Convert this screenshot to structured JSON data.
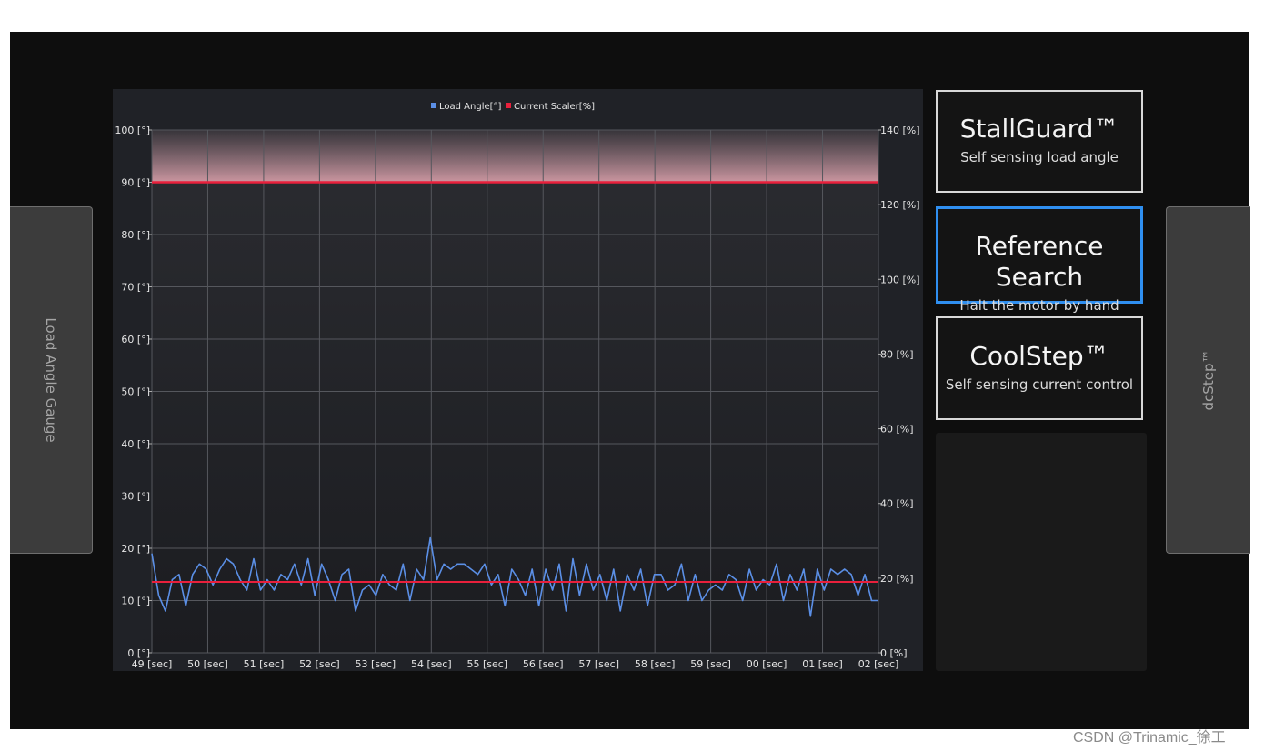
{
  "side_left": {
    "label": "Load Angle Gauge"
  },
  "side_right": {
    "label": "dcStep™"
  },
  "cards": [
    {
      "title": "StallGuard™",
      "subtitle": "Self sensing load angle"
    },
    {
      "title": "Reference Search",
      "subtitle": "Halt the motor by hand"
    },
    {
      "title": "CoolStep™",
      "subtitle": "Self sensing current control"
    }
  ],
  "watermark": "CSDN @Trinamic_徐工",
  "colors": {
    "load_angle": "#5b8fe6",
    "current_scaler": "#e8203c",
    "selected_border": "#2f8ff0",
    "plot_background": "#25262a"
  },
  "chart_data": {
    "type": "line",
    "legend": {
      "placement": "top-center",
      "entries": [
        "Load Angle[°]",
        "Current Scaler[%]"
      ]
    },
    "x_ticks": [
      "49 [sec]",
      "50 [sec]",
      "51 [sec]",
      "52 [sec]",
      "53 [sec]",
      "54 [sec]",
      "55 [sec]",
      "56 [sec]",
      "57 [sec]",
      "58 [sec]",
      "59 [sec]",
      "00 [sec]",
      "01 [sec]",
      "02 [sec]"
    ],
    "y_left": {
      "ticks": [
        "0 [°]",
        "10 [°]",
        "20 [°]",
        "30 [°]",
        "40 [°]",
        "50 [°]",
        "60 [°]",
        "70 [°]",
        "80 [°]",
        "90 [°]",
        "100 [°]"
      ],
      "range": [
        0,
        100
      ]
    },
    "y_right": {
      "ticks": [
        "0 [%]",
        "20 [%]",
        "40 [%]",
        "60 [%]",
        "80 [%]",
        "100 [%]",
        "120 [%]",
        "140 [%]"
      ],
      "range": [
        0,
        140
      ]
    },
    "grid": true,
    "threshold": {
      "axis": "left",
      "value": 90
    },
    "series": [
      {
        "name": "Load Angle[°]",
        "axis": "left",
        "x_range": [
          0,
          13
        ],
        "values": [
          19,
          11,
          8,
          14,
          15,
          9,
          15,
          17,
          16,
          13,
          16,
          18,
          17,
          14,
          12,
          18,
          12,
          14,
          12,
          15,
          14,
          17,
          13,
          18,
          11,
          17,
          14,
          10,
          15,
          16,
          8,
          12,
          13,
          11,
          15,
          13,
          12,
          17,
          10,
          16,
          14,
          22,
          14,
          17,
          16,
          17,
          17,
          16,
          15,
          17,
          13,
          15,
          9,
          16,
          14,
          11,
          16,
          9,
          16,
          12,
          17,
          8,
          18,
          11,
          17,
          12,
          15,
          10,
          16,
          8,
          15,
          12,
          16,
          9,
          15,
          15,
          12,
          13,
          17,
          10,
          15,
          10,
          12,
          13,
          12,
          15,
          14,
          10,
          16,
          12,
          14,
          13,
          17,
          10,
          15,
          12,
          16,
          7,
          16,
          12,
          16,
          15,
          16,
          15,
          11,
          15,
          10,
          10
        ],
        "style": "solid"
      },
      {
        "name": "Current Scaler[%]",
        "axis": "right",
        "x_range": [
          0,
          13
        ],
        "values": [
          19,
          19
        ],
        "style": "solid"
      }
    ]
  }
}
